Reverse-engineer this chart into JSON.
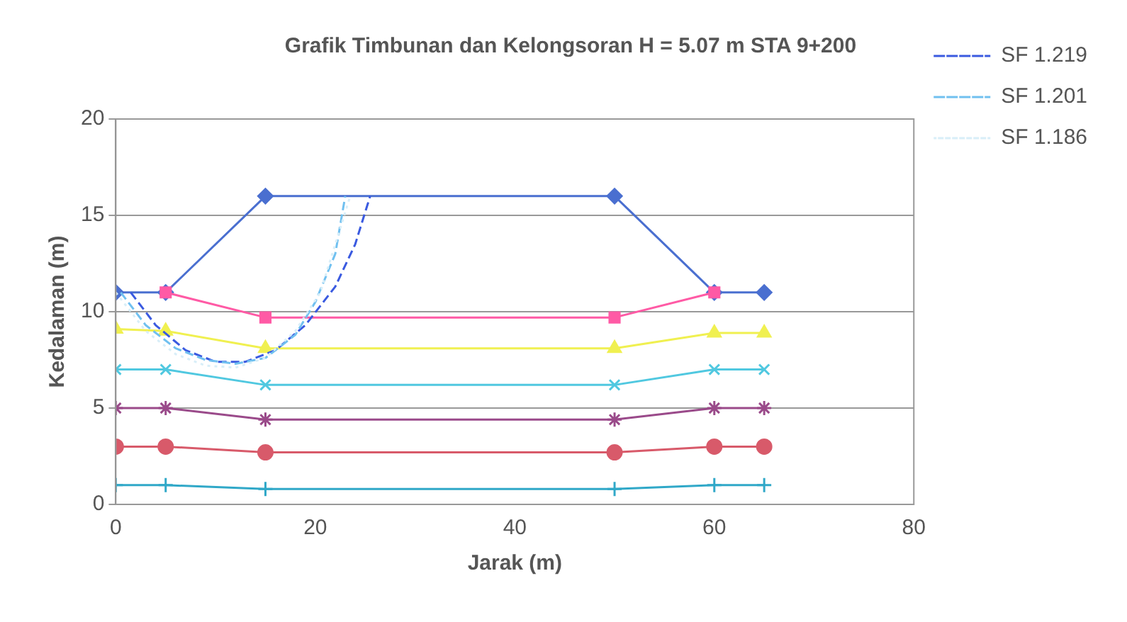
{
  "chart_data": {
    "type": "line",
    "title": "Grafik Timbunan dan Kelongsoran H = 5.07 m STA 9+200",
    "xlabel": "Jarak (m)",
    "ylabel": "Kedalaman (m)",
    "xlim": [
      0,
      80
    ],
    "xticks": [
      0,
      20,
      40,
      60,
      80
    ],
    "ylim": [
      0,
      20
    ],
    "yticks": [
      0,
      5,
      10,
      15,
      20
    ],
    "grid": "y",
    "legend": "right",
    "series": [
      {
        "color": "#4a6fd0",
        "marker": "diamond",
        "x": [
          0,
          5,
          15,
          50,
          60,
          65
        ],
        "values": [
          11,
          11,
          16,
          16,
          11,
          11
        ]
      },
      {
        "color": "#ff5aa5",
        "marker": "square",
        "x": [
          5,
          15,
          50,
          60
        ],
        "values": [
          11,
          9.7,
          9.7,
          11
        ]
      },
      {
        "color": "#f0f050",
        "marker": "triangle",
        "x": [
          0,
          5,
          15,
          50,
          60,
          65
        ],
        "values": [
          9.1,
          9,
          8.1,
          8.1,
          8.9,
          8.9
        ]
      },
      {
        "color": "#50c8e0",
        "marker": "x",
        "x": [
          0,
          5,
          15,
          50,
          60,
          65
        ],
        "values": [
          7,
          7,
          6.2,
          6.2,
          7,
          7
        ]
      },
      {
        "color": "#9a4a8a",
        "marker": "cross",
        "x": [
          0,
          5,
          15,
          50,
          60,
          65
        ],
        "values": [
          5,
          5,
          4.4,
          4.4,
          5,
          5
        ]
      },
      {
        "color": "#d85a6a",
        "marker": "circle",
        "x": [
          0,
          5,
          15,
          50,
          60,
          65
        ],
        "values": [
          3,
          3,
          2.7,
          2.7,
          3,
          3
        ]
      },
      {
        "color": "#30a8c8",
        "marker": "plus",
        "x": [
          0,
          5,
          15,
          50,
          60,
          65
        ],
        "values": [
          1,
          1,
          0.8,
          0.8,
          1,
          1
        ]
      },
      {
        "name": "SF 1.219",
        "color": "#3a5ae0",
        "marker": "none",
        "line_style": "dashed",
        "x": [
          1.5,
          4,
          7,
          10,
          13,
          16,
          19,
          22,
          24,
          25.5
        ],
        "values": [
          11,
          9.3,
          8,
          7.4,
          7.4,
          8,
          9.3,
          11.3,
          13.5,
          16
        ]
      },
      {
        "name": "SF 1.201",
        "color": "#70c0f0",
        "marker": "none",
        "line_style": "dashed",
        "x": [
          0.5,
          3,
          6,
          9,
          12,
          15,
          18,
          20,
          22,
          23
        ],
        "values": [
          11,
          9.3,
          8.1,
          7.5,
          7.3,
          7.6,
          8.8,
          10.5,
          13,
          16
        ]
      },
      {
        "name": "SF 1.186",
        "color": "#d8eef8",
        "marker": "none",
        "line_style": "dotted",
        "x": [
          0,
          3,
          6,
          9,
          12,
          15,
          18,
          20.5,
          22,
          23.5
        ],
        "values": [
          11,
          9,
          7.8,
          7.2,
          7.1,
          7.6,
          9,
          11,
          13.5,
          16
        ]
      }
    ]
  }
}
